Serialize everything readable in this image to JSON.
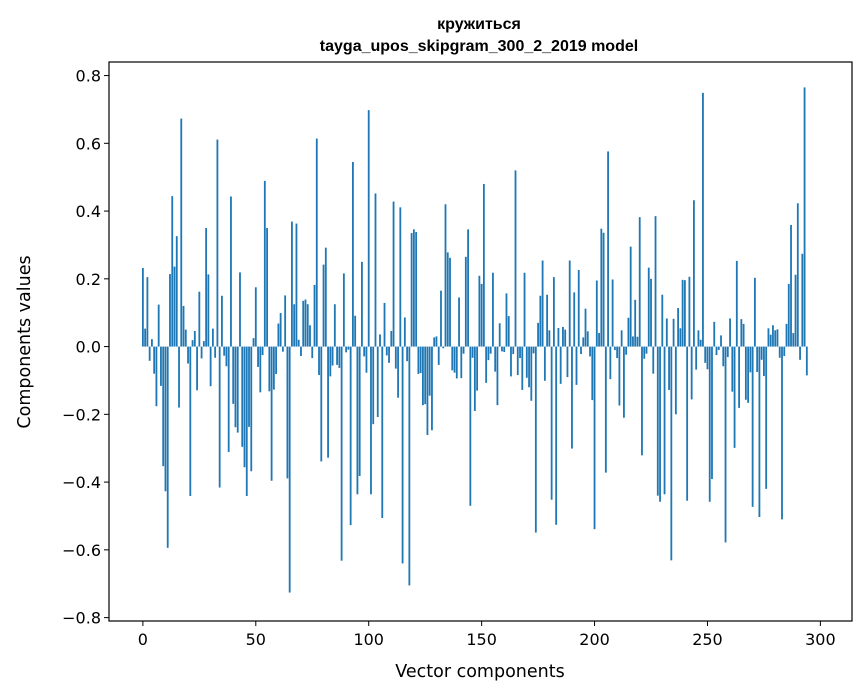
{
  "chart_data": {
    "type": "bar",
    "title_line1": "кружиться",
    "title_line2": "tayga_upos_skipgram_300_2_2019 model",
    "xlabel": "Vector components",
    "ylabel": "Components values",
    "xlim": [
      -15,
      314
    ],
    "ylim": [
      -0.81,
      0.84
    ],
    "xticks": [
      0,
      50,
      100,
      150,
      200,
      250,
      300
    ],
    "xtick_labels": [
      "0",
      "50",
      "100",
      "150",
      "200",
      "250",
      "300"
    ],
    "yticks": [
      -0.8,
      -0.6,
      -0.4,
      -0.2,
      0.0,
      0.2,
      0.4,
      0.6,
      0.8
    ],
    "ytick_labels": [
      "−0.8",
      "−0.6",
      "−0.4",
      "−0.2",
      "0.0",
      "0.2",
      "0.4",
      "0.6",
      "0.8"
    ],
    "bar_color": "#1f77b4",
    "values": [
      0.232,
      0.053,
      0.205,
      -0.042,
      0.022,
      -0.08,
      -0.176,
      0.124,
      -0.116,
      -0.353,
      -0.427,
      -0.594,
      0.214,
      0.444,
      0.236,
      0.326,
      -0.18,
      0.673,
      0.12,
      0.05,
      -0.05,
      -0.441,
      0.019,
      0.046,
      -0.129,
      0.162,
      -0.035,
      0.016,
      0.35,
      0.213,
      -0.117,
      0.053,
      -0.033,
      0.611,
      -0.416,
      0.15,
      -0.027,
      -0.058,
      -0.311,
      0.443,
      -0.169,
      -0.238,
      -0.254,
      0.219,
      -0.296,
      -0.356,
      -0.441,
      -0.237,
      -0.368,
      0.025,
      0.175,
      -0.06,
      -0.135,
      -0.025,
      0.489,
      0.35,
      -0.132,
      -0.396,
      -0.127,
      -0.081,
      0.068,
      0.099,
      -0.015,
      0.151,
      -0.389,
      -0.726,
      0.369,
      0.125,
      0.363,
      0.02,
      -0.028,
      0.135,
      0.139,
      0.125,
      0.063,
      -0.034,
      0.182,
      0.614,
      -0.084,
      -0.339,
      0.242,
      0.292,
      -0.328,
      -0.088,
      -0.056,
      0.125,
      -0.054,
      -0.063,
      -0.632,
      0.216,
      -0.017,
      -0.009,
      -0.527,
      0.545,
      0.091,
      -0.436,
      -0.382,
      0.25,
      -0.029,
      -0.077,
      0.698,
      -0.436,
      -0.229,
      0.452,
      -0.208,
      0.036,
      -0.506,
      0.129,
      -0.026,
      -0.048,
      0.046,
      0.428,
      -0.065,
      -0.151,
      0.411,
      -0.64,
      0.086,
      -0.043,
      -0.705,
      0.335,
      0.346,
      0.338,
      -0.081,
      -0.078,
      -0.173,
      -0.17,
      -0.261,
      -0.145,
      -0.247,
      0.027,
      0.03,
      -0.054,
      0.165,
      -0.005,
      0.42,
      0.278,
      0.262,
      -0.07,
      -0.077,
      -0.094,
      0.145,
      -0.093,
      -0.021,
      0.265,
      0.346,
      -0.47,
      -0.033,
      -0.19,
      -0.13,
      0.209,
      0.185,
      0.48,
      -0.107,
      -0.04,
      -0.021,
      0.218,
      -0.074,
      -0.173,
      0.069,
      -0.014,
      -0.016,
      0.157,
      0.09,
      -0.088,
      -0.022,
      0.52,
      -0.084,
      -0.034,
      -0.128,
      0.218,
      -0.092,
      -0.12,
      -0.16,
      -0.02,
      -0.549,
      0.07,
      0.15,
      0.254,
      -0.101,
      0.153,
      0.048,
      -0.452,
      0.205,
      -0.526,
      0.055,
      -0.11,
      0.058,
      0.05,
      -0.09,
      0.254,
      -0.301,
      0.16,
      -0.113,
      0.226,
      -0.022,
      0.027,
      0.112,
      0.045,
      -0.029,
      -0.158,
      -0.539,
      0.195,
      0.04,
      0.348,
      0.336,
      -0.372,
      0.576,
      -0.096,
      0.198,
      -0.01,
      -0.034,
      -0.174,
      0.048,
      -0.21,
      -0.024,
      0.085,
      0.295,
      0.03,
      0.138,
      0.029,
      0.382,
      -0.321,
      -0.036,
      -0.021,
      0.233,
      0.2,
      -0.08,
      0.385,
      -0.44,
      -0.458,
      0.153,
      -0.436,
      0.083,
      -0.128,
      -0.631,
      0.082,
      -0.2,
      0.114,
      0.054,
      0.197,
      0.196,
      -0.455,
      0.206,
      -0.156,
      0.432,
      -0.068,
      0.048,
      0.02,
      0.749,
      -0.048,
      -0.067,
      -0.458,
      -0.391,
      0.073,
      -0.025,
      -0.01,
      0.033,
      -0.058,
      -0.578,
      -0.031,
      0.083,
      -0.133,
      -0.299,
      0.253,
      -0.181,
      0.081,
      0.067,
      -0.157,
      -0.166,
      -0.076,
      -0.473,
      0.203,
      -0.075,
      -0.503,
      -0.039,
      -0.087,
      -0.42,
      0.054,
      0.035,
      0.063,
      0.048,
      0.051,
      -0.033,
      -0.51,
      -0.028,
      0.067,
      0.185,
      0.359,
      0.04,
      0.212,
      0.423,
      -0.039,
      0.274,
      0.765,
      -0.085
    ]
  }
}
